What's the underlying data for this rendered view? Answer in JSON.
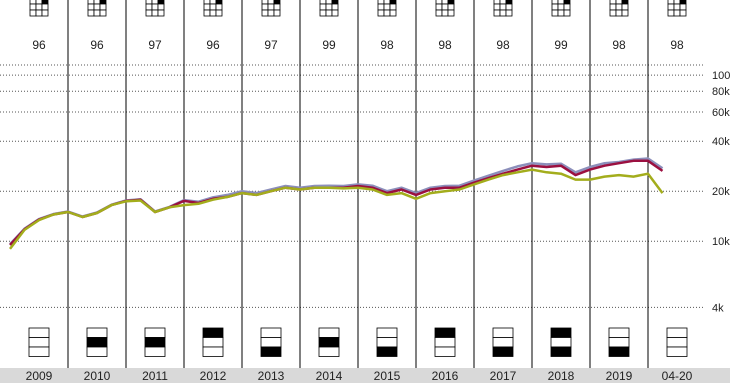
{
  "chart_data": {
    "type": "line",
    "categories": [
      "2009",
      "2010",
      "2011",
      "2012",
      "2013",
      "2014",
      "2015",
      "2016",
      "2017",
      "2018",
      "2019",
      "04-20"
    ],
    "equity_percent": [
      96,
      96,
      97,
      96,
      97,
      99,
      98,
      98,
      98,
      99,
      98,
      98
    ],
    "x": [
      2009.0,
      2009.25,
      2009.5,
      2009.75,
      2010.0,
      2010.25,
      2010.5,
      2010.75,
      2011.0,
      2011.25,
      2011.5,
      2011.75,
      2012.0,
      2012.25,
      2012.5,
      2012.75,
      2013.0,
      2013.25,
      2013.5,
      2013.75,
      2014.0,
      2014.25,
      2014.5,
      2014.75,
      2015.0,
      2015.25,
      2015.5,
      2015.75,
      2016.0,
      2016.25,
      2016.5,
      2016.75,
      2017.0,
      2017.25,
      2017.5,
      2017.75,
      2018.0,
      2018.25,
      2018.5,
      2018.75,
      2019.0,
      2019.25,
      2019.5,
      2019.75,
      2020.0,
      2020.25
    ],
    "xlim": [
      2009,
      2021
    ],
    "ylim": [
      3600,
      115000
    ],
    "log_scale": true,
    "grid": true,
    "yticks": [
      {
        "value": 100000,
        "label": "100k"
      },
      {
        "value": 80000,
        "label": "80k"
      },
      {
        "value": 60000,
        "label": "60k"
      },
      {
        "value": 40000,
        "label": "40k"
      },
      {
        "value": 20000,
        "label": "20k"
      },
      {
        "value": 10000,
        "label": "10k"
      },
      {
        "value": 4000,
        "label": "4k"
      }
    ],
    "series": [
      {
        "color": "#8c8fbb",
        "values": [
          9600,
          11900,
          13600,
          14600,
          15100,
          14100,
          14900,
          16600,
          17600,
          17900,
          15100,
          16100,
          17700,
          17300,
          18400,
          19000,
          20000,
          19500,
          20500,
          21500,
          21000,
          21500,
          21600,
          21500,
          22000,
          21600,
          20000,
          21000,
          19500,
          21000,
          21500,
          21600,
          23200,
          24800,
          26500,
          28200,
          29500,
          29000,
          29300,
          26000,
          28000,
          29500,
          30000,
          31000,
          31500,
          27500
        ]
      },
      {
        "color": "#9b1040",
        "values": [
          9500,
          11800,
          13500,
          14500,
          15000,
          14000,
          14800,
          16500,
          17500,
          17800,
          15000,
          16000,
          17500,
          17000,
          18000,
          18500,
          19500,
          19000,
          20000,
          21000,
          20500,
          21000,
          21000,
          21000,
          21500,
          21000,
          19500,
          20500,
          19000,
          20500,
          21000,
          21000,
          22500,
          24000,
          25500,
          27000,
          28500,
          28000,
          28500,
          25000,
          27000,
          28500,
          29500,
          30500,
          30500,
          26500
        ]
      },
      {
        "color": "#a3ad1c",
        "values": [
          9000,
          11700,
          13400,
          14500,
          15000,
          14000,
          14800,
          16500,
          17400,
          17600,
          15000,
          16000,
          16500,
          16800,
          17800,
          18500,
          19500,
          19000,
          20000,
          21000,
          20500,
          21000,
          21000,
          20800,
          21000,
          20500,
          19000,
          19500,
          18000,
          19500,
          20000,
          20500,
          22000,
          23500,
          25000,
          26000,
          27000,
          26000,
          25500,
          23500,
          23500,
          24500,
          25000,
          24500,
          25500,
          19500
        ]
      }
    ]
  }
}
